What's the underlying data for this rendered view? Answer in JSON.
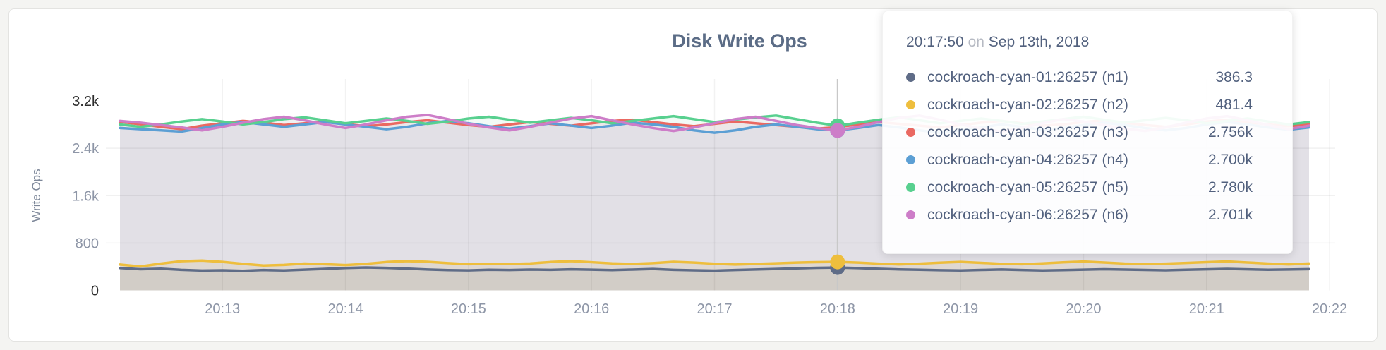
{
  "card": {
    "title": "Disk Write Ops"
  },
  "chart_data": {
    "type": "line",
    "title": "Disk Write Ops",
    "xlabel": "",
    "ylabel": "Write Ops",
    "ylim": [
      0,
      3200
    ],
    "grid": true,
    "x_tick_labels": [
      "20:13",
      "20:14",
      "20:15",
      "20:16",
      "20:17",
      "20:18",
      "20:19",
      "20:20",
      "20:21",
      "20:22"
    ],
    "x_tick_first_index": 5,
    "x_tick_step": 6,
    "x_sample_interval_seconds": 10,
    "y_ticks": [
      {
        "value": 0,
        "label": "0",
        "emphasis": true,
        "grid": false
      },
      {
        "value": 800,
        "label": "800",
        "emphasis": false,
        "grid": true
      },
      {
        "value": 1600,
        "label": "1.6k",
        "emphasis": false,
        "grid": true
      },
      {
        "value": 2400,
        "label": "2.4k",
        "emphasis": false,
        "grid": true
      },
      {
        "value": 3200,
        "label": "3.2k",
        "emphasis": true,
        "grid": false
      }
    ],
    "hover_index": 35,
    "series": [
      {
        "id": "n1",
        "name": "cockroach-cyan-01:26257 (n1)",
        "color": "#5f6c87",
        "fill_opacity": 0.12,
        "values": [
          378,
          357,
          367,
          347,
          335,
          340,
          331,
          344,
          336,
          350,
          364,
          379,
          388,
          380,
          368,
          353,
          343,
          338,
          349,
          344,
          352,
          347,
          356,
          350,
          343,
          352,
          362,
          347,
          339,
          334,
          344,
          353,
          362,
          372,
          381,
          386.3,
          377,
          365,
          355,
          348,
          341,
          336,
          345,
          353,
          344,
          337,
          342,
          350,
          358,
          352,
          345,
          340,
          348,
          356,
          363,
          356,
          348,
          353,
          359
        ]
      },
      {
        "id": "n2",
        "name": "cockroach-cyan-02:26257 (n2)",
        "color": "#eebe3d",
        "fill_opacity": 0.15,
        "values": [
          436,
          404,
          453,
          493,
          503,
          481,
          449,
          420,
          431,
          453,
          442,
          428,
          448,
          479,
          495,
          482,
          460,
          442,
          450,
          445,
          455,
          479,
          495,
          476,
          456,
          447,
          461,
          482,
          469,
          450,
          436,
          447,
          458,
          470,
          477,
          481.4,
          470,
          452,
          440,
          452,
          468,
          481,
          465,
          449,
          443,
          456,
          474,
          487,
          471,
          453,
          444,
          451,
          463,
          477,
          489,
          471,
          453,
          440,
          455
        ]
      },
      {
        "id": "n3",
        "name": "cockroach-cyan-03:26257 (n3)",
        "color": "#ea6962",
        "fill_opacity": 0.08,
        "values": [
          2845,
          2805,
          2762,
          2722,
          2782,
          2822,
          2862,
          2832,
          2792,
          2822,
          2852,
          2812,
          2772,
          2802,
          2842,
          2872,
          2832,
          2792,
          2762,
          2802,
          2842,
          2812,
          2782,
          2822,
          2862,
          2882,
          2842,
          2802,
          2772,
          2812,
          2852,
          2822,
          2792,
          2762,
          2732,
          2756,
          2802,
          2842,
          2812,
          2782,
          2752,
          2792,
          2832,
          2862,
          2822,
          2782,
          2802,
          2842,
          2872,
          2832,
          2792,
          2762,
          2802,
          2852,
          2882,
          2842,
          2802,
          2772,
          2802
        ]
      },
      {
        "id": "n4",
        "name": "cockroach-cyan-04:26257 (n4)",
        "color": "#5c9fd4",
        "fill_opacity": 0.08,
        "values": [
          2742,
          2722,
          2702,
          2682,
          2742,
          2802,
          2842,
          2802,
          2762,
          2802,
          2842,
          2802,
          2762,
          2722,
          2762,
          2822,
          2862,
          2822,
          2772,
          2732,
          2772,
          2822,
          2782,
          2742,
          2782,
          2832,
          2802,
          2762,
          2702,
          2662,
          2702,
          2762,
          2802,
          2762,
          2722,
          2700,
          2742,
          2792,
          2752,
          2702,
          2662,
          2702,
          2752,
          2802,
          2762,
          2712,
          2742,
          2792,
          2832,
          2792,
          2742,
          2702,
          2742,
          2802,
          2842,
          2802,
          2752,
          2712,
          2752
        ]
      },
      {
        "id": "n5",
        "name": "cockroach-cyan-05:26257 (n5)",
        "color": "#58d08f",
        "fill_opacity": 0.08,
        "values": [
          2802,
          2762,
          2802,
          2852,
          2892,
          2852,
          2802,
          2842,
          2892,
          2922,
          2872,
          2822,
          2862,
          2902,
          2862,
          2812,
          2852,
          2902,
          2932,
          2882,
          2832,
          2872,
          2912,
          2872,
          2822,
          2862,
          2902,
          2942,
          2892,
          2842,
          2882,
          2922,
          2952,
          2892,
          2832,
          2780,
          2832,
          2882,
          2922,
          2872,
          2822,
          2862,
          2902,
          2862,
          2812,
          2852,
          2892,
          2932,
          2882,
          2832,
          2872,
          2912,
          2872,
          2822,
          2862,
          2902,
          2852,
          2802,
          2842
        ]
      },
      {
        "id": "n6",
        "name": "cockroach-cyan-06:26257 (n6)",
        "color": "#cd7dc8",
        "fill_opacity": 0.08,
        "values": [
          2862,
          2832,
          2792,
          2752,
          2702,
          2762,
          2832,
          2892,
          2932,
          2872,
          2802,
          2742,
          2802,
          2872,
          2932,
          2962,
          2892,
          2812,
          2752,
          2702,
          2762,
          2832,
          2902,
          2942,
          2872,
          2802,
          2742,
          2692,
          2752,
          2822,
          2892,
          2932,
          2862,
          2792,
          2742,
          2701,
          2762,
          2842,
          2912,
          2952,
          2882,
          2802,
          2732,
          2682,
          2742,
          2822,
          2892,
          2852,
          2792,
          2732,
          2692,
          2752,
          2832,
          2902,
          2942,
          2872,
          2792,
          2722,
          2782
        ]
      }
    ]
  },
  "tooltip": {
    "time": "20:17:50",
    "conjunction": "on",
    "date": "Sep 13th, 2018",
    "rows": [
      {
        "label": "cockroach-cyan-01:26257 (n1)",
        "value": "386.3",
        "color": "#5f6c87"
      },
      {
        "label": "cockroach-cyan-02:26257 (n2)",
        "value": "481.4",
        "color": "#eebe3d"
      },
      {
        "label": "cockroach-cyan-03:26257 (n3)",
        "value": "2.756k",
        "color": "#ea6962"
      },
      {
        "label": "cockroach-cyan-04:26257 (n4)",
        "value": "2.700k",
        "color": "#5c9fd4"
      },
      {
        "label": "cockroach-cyan-05:26257 (n5)",
        "value": "2.780k",
        "color": "#58d08f"
      },
      {
        "label": "cockroach-cyan-06:26257 (n6)",
        "value": "2.701k",
        "color": "#cd7dc8"
      }
    ]
  },
  "colors": {
    "title_text": "#5b6c86",
    "tooltip_text": "#52617e",
    "tooltip_muted": "#b6bac3",
    "axis_tick_muted": "#8e96a7",
    "axis_tick_emphasis": "#2e2e2e",
    "crosshair": "#c8c8c8",
    "card_background": "#ffffff",
    "page_background": "#f4f4f2"
  }
}
